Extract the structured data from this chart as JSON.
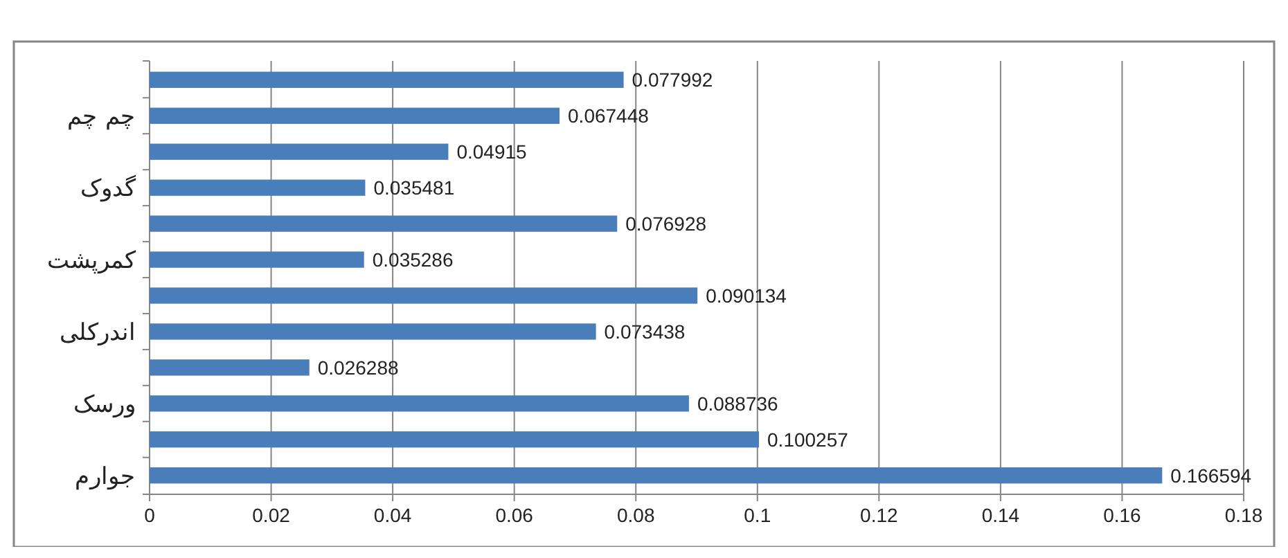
{
  "chart_data": {
    "type": "bar",
    "orientation": "horizontal",
    "categories": [
      null,
      "چم چم",
      null,
      "گدوک",
      null,
      "کمرپشت",
      null,
      "اندرکلی",
      null,
      "ورسک",
      null,
      "جوارم"
    ],
    "values": [
      0.077992,
      0.067448,
      0.04915,
      0.035481,
      0.076928,
      0.035286,
      0.090134,
      0.073438,
      0.026288,
      0.088736,
      0.100257,
      0.166594
    ],
    "color": "#4a7ebb",
    "data_labels": true,
    "grid": "x",
    "xlim": [
      0,
      0.18
    ],
    "xticks": [
      0,
      0.02,
      0.04,
      0.06,
      0.08,
      0.1,
      0.12,
      0.14,
      0.16,
      0.18
    ]
  }
}
